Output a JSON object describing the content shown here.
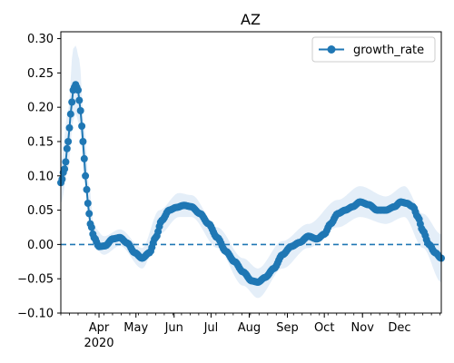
{
  "chart_data": {
    "type": "line",
    "title": "AZ",
    "xlabel": "",
    "ylabel": "",
    "x_range": [
      "2020-03-01",
      "2021-01-04"
    ],
    "ylim": [
      -0.1,
      0.31
    ],
    "y_ticks": [
      "−0.10",
      "−0.05",
      "0.00",
      "0.05",
      "0.10",
      "0.15",
      "0.20",
      "0.25",
      "0.30"
    ],
    "y_tick_values": [
      -0.1,
      -0.05,
      0.0,
      0.05,
      0.1,
      0.15,
      0.2,
      0.25,
      0.3
    ],
    "x_ticks": [
      {
        "date": "2020-04-01",
        "label": "Apr",
        "sublabel": "2020"
      },
      {
        "date": "2020-05-01",
        "label": "May",
        "sublabel": ""
      },
      {
        "date": "2020-06-01",
        "label": "Jun",
        "sublabel": ""
      },
      {
        "date": "2020-07-01",
        "label": "Jul",
        "sublabel": ""
      },
      {
        "date": "2020-08-01",
        "label": "Aug",
        "sublabel": ""
      },
      {
        "date": "2020-09-01",
        "label": "Sep",
        "sublabel": ""
      },
      {
        "date": "2020-10-01",
        "label": "Oct",
        "sublabel": ""
      },
      {
        "date": "2020-11-01",
        "label": "Nov",
        "sublabel": ""
      },
      {
        "date": "2020-12-01",
        "label": "Dec",
        "sublabel": ""
      }
    ],
    "reference_line": {
      "y": 0.0,
      "style": "dashed"
    },
    "legend": {
      "position": "upper right",
      "entries": [
        "growth_rate"
      ]
    },
    "grid": false,
    "series": [
      {
        "name": "growth_rate",
        "color": "#1f77b4",
        "band_color": "#dbe8f5",
        "marker": "circle",
        "points": [
          [
            "2020-03-01",
            0.09
          ],
          [
            "2020-03-04",
            0.11
          ],
          [
            "2020-03-07",
            0.15
          ],
          [
            "2020-03-09",
            0.19
          ],
          [
            "2020-03-11",
            0.225
          ],
          [
            "2020-03-13",
            0.233
          ],
          [
            "2020-03-15",
            0.225
          ],
          [
            "2020-03-17",
            0.195
          ],
          [
            "2020-03-19",
            0.15
          ],
          [
            "2020-03-21",
            0.1
          ],
          [
            "2020-03-23",
            0.06
          ],
          [
            "2020-03-25",
            0.03
          ],
          [
            "2020-03-28",
            0.01
          ],
          [
            "2020-04-01",
            -0.003
          ],
          [
            "2020-04-06",
            -0.002
          ],
          [
            "2020-04-12",
            0.008
          ],
          [
            "2020-04-18",
            0.01
          ],
          [
            "2020-04-24",
            0.002
          ],
          [
            "2020-04-30",
            -0.012
          ],
          [
            "2020-05-06",
            -0.02
          ],
          [
            "2020-05-12",
            -0.012
          ],
          [
            "2020-05-17",
            0.01
          ],
          [
            "2020-05-22",
            0.035
          ],
          [
            "2020-05-28",
            0.05
          ],
          [
            "2020-06-03",
            0.054
          ],
          [
            "2020-06-09",
            0.057
          ],
          [
            "2020-06-15",
            0.055
          ],
          [
            "2020-06-22",
            0.045
          ],
          [
            "2020-06-29",
            0.03
          ],
          [
            "2020-07-06",
            0.01
          ],
          [
            "2020-07-13",
            -0.01
          ],
          [
            "2020-07-20",
            -0.025
          ],
          [
            "2020-07-27",
            -0.04
          ],
          [
            "2020-08-03",
            -0.053
          ],
          [
            "2020-08-08",
            -0.055
          ],
          [
            "2020-08-14",
            -0.048
          ],
          [
            "2020-08-21",
            -0.035
          ],
          [
            "2020-08-28",
            -0.015
          ],
          [
            "2020-09-04",
            -0.003
          ],
          [
            "2020-09-11",
            0.003
          ],
          [
            "2020-09-18",
            0.012
          ],
          [
            "2020-09-25",
            0.008
          ],
          [
            "2020-10-01",
            0.015
          ],
          [
            "2020-10-06",
            0.03
          ],
          [
            "2020-10-12",
            0.045
          ],
          [
            "2020-10-18",
            0.05
          ],
          [
            "2020-10-24",
            0.055
          ],
          [
            "2020-10-30",
            0.062
          ],
          [
            "2020-11-06",
            0.058
          ],
          [
            "2020-11-13",
            0.05
          ],
          [
            "2020-11-20",
            0.05
          ],
          [
            "2020-11-27",
            0.055
          ],
          [
            "2020-12-02",
            0.062
          ],
          [
            "2020-12-07",
            0.06
          ],
          [
            "2020-12-12",
            0.055
          ],
          [
            "2020-12-16",
            0.04
          ],
          [
            "2020-12-20",
            0.02
          ],
          [
            "2020-12-25",
            0.0
          ],
          [
            "2020-12-30",
            -0.012
          ],
          [
            "2021-01-04",
            -0.02
          ]
        ],
        "band": [
          [
            "2020-03-01",
            0.06,
            0.12
          ],
          [
            "2020-03-07",
            0.11,
            0.195
          ],
          [
            "2020-03-11",
            0.18,
            0.285
          ],
          [
            "2020-03-13",
            0.19,
            0.29
          ],
          [
            "2020-03-16",
            0.175,
            0.27
          ],
          [
            "2020-03-20",
            0.095,
            0.17
          ],
          [
            "2020-03-24",
            0.03,
            0.085
          ],
          [
            "2020-03-28",
            -0.005,
            0.025
          ],
          [
            "2020-04-05",
            -0.015,
            0.012
          ],
          [
            "2020-04-18",
            -0.002,
            0.022
          ],
          [
            "2020-05-06",
            -0.035,
            -0.005
          ],
          [
            "2020-05-20",
            0.015,
            0.05
          ],
          [
            "2020-06-05",
            0.04,
            0.075
          ],
          [
            "2020-06-15",
            0.04,
            0.072
          ],
          [
            "2020-07-06",
            -0.005,
            0.025
          ],
          [
            "2020-07-27",
            -0.06,
            -0.02
          ],
          [
            "2020-08-08",
            -0.078,
            -0.035
          ],
          [
            "2020-08-28",
            -0.035,
            0.005
          ],
          [
            "2020-09-18",
            -0.005,
            0.03
          ],
          [
            "2020-10-12",
            0.025,
            0.065
          ],
          [
            "2020-10-30",
            0.04,
            0.085
          ],
          [
            "2020-11-20",
            0.03,
            0.07
          ],
          [
            "2020-12-05",
            0.04,
            0.085
          ],
          [
            "2020-12-20",
            -0.005,
            0.045
          ],
          [
            "2021-01-04",
            -0.055,
            0.015
          ]
        ]
      }
    ]
  }
}
